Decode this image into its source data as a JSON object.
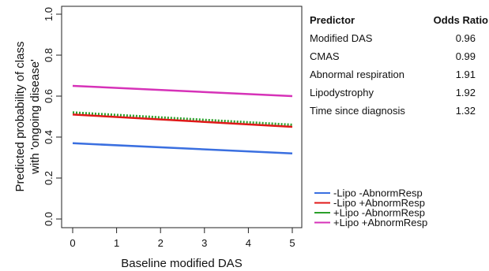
{
  "chart_data": {
    "type": "line",
    "xlabel": "Baseline modified DAS",
    "ylabel_lines": [
      "Predicted probability of class",
      "with 'ongoing disease'"
    ],
    "xlim": [
      0,
      5
    ],
    "ylim": [
      0,
      1
    ],
    "x_ticks": [
      0,
      1,
      2,
      3,
      4,
      5
    ],
    "y_ticks": [
      0.0,
      0.2,
      0.4,
      0.6,
      0.8,
      1.0
    ],
    "x_tick_labels": [
      "0",
      "1",
      "2",
      "3",
      "4",
      "5"
    ],
    "y_tick_labels": [
      "0.0",
      "0.2",
      "0.4",
      "0.6",
      "0.8",
      "1.0"
    ],
    "series": [
      {
        "name": "-Lipo -AbnormResp",
        "color": "#3a6fe0",
        "dash": "solid",
        "x": [
          0,
          5
        ],
        "values": [
          0.37,
          0.32
        ]
      },
      {
        "name": "+Lipo -AbnormResp",
        "color": "#2aa02a",
        "dash": "dotted",
        "x": [
          0,
          5
        ],
        "values": [
          0.52,
          0.46
        ]
      },
      {
        "name": "-Lipo +AbnormResp",
        "color": "#e01818",
        "dash": "solid",
        "x": [
          0,
          5
        ],
        "values": [
          0.51,
          0.45
        ]
      },
      {
        "name": "+Lipo +AbnormResp",
        "color": "#d632b8",
        "dash": "solid",
        "x": [
          0,
          5
        ],
        "values": [
          0.65,
          0.6
        ]
      }
    ],
    "legend_order": [
      0,
      2,
      1,
      3
    ],
    "legend_position": "bottom-right",
    "grid": false,
    "table": {
      "headers": [
        "Predictor",
        "Odds Ratio"
      ],
      "rows": [
        [
          "Modified DAS",
          "0.96"
        ],
        [
          "CMAS",
          "0.99"
        ],
        [
          "Abnormal respiration",
          "1.91"
        ],
        [
          "Lipodystrophy",
          "1.92"
        ],
        [
          "Time since diagnosis",
          "1.32"
        ]
      ]
    }
  }
}
